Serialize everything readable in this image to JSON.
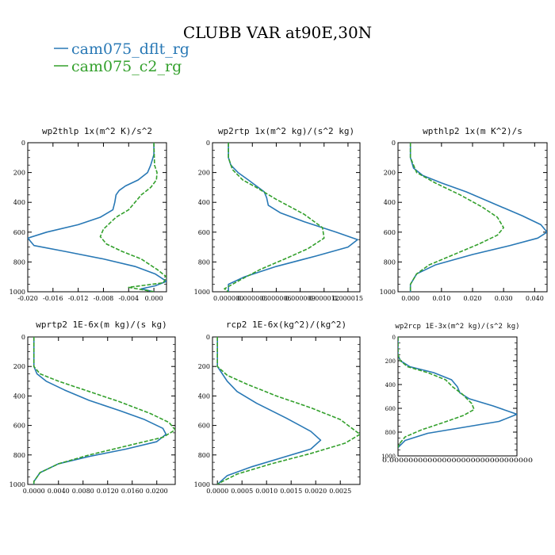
{
  "title": "CLUBB VAR at90E,30N",
  "legend": [
    {
      "label": "cam075_dflt_rg",
      "color": "#2878b5"
    },
    {
      "label": "cam075_c2_rg",
      "color": "#33a02c"
    }
  ],
  "chart_data": [
    {
      "type": "line",
      "title": "wp2thlp  1x(m^2 K)/s^2",
      "xlim": [
        -0.02,
        0.002
      ],
      "ylim": [
        0,
        1000
      ],
      "yticks": [
        0,
        200,
        400,
        600,
        800,
        1000
      ],
      "xticks": [
        {
          "v": -0.02,
          "label": "-0.020"
        },
        {
          "v": -0.016,
          "label": "-0.016"
        },
        {
          "v": -0.012,
          "label": "-0.012"
        },
        {
          "v": -0.008,
          "label": "-0.008"
        },
        {
          "v": -0.004,
          "label": "-0.004"
        },
        {
          "v": 0.0,
          "label": "0.000"
        }
      ],
      "series": [
        {
          "name": "cam075_dflt_rg",
          "dashed": false,
          "points": [
            [
              0,
              0
            ],
            [
              0,
              80
            ],
            [
              -0.0005,
              150
            ],
            [
              -0.001,
              200
            ],
            [
              -0.0025,
              250
            ],
            [
              -0.0045,
              290
            ],
            [
              -0.0055,
              320
            ],
            [
              -0.006,
              350
            ],
            [
              -0.0062,
              400
            ],
            [
              -0.0065,
              450
            ],
            [
              -0.0085,
              500
            ],
            [
              -0.012,
              550
            ],
            [
              -0.017,
              600
            ],
            [
              -0.02,
              640
            ],
            [
              -0.019,
              690
            ],
            [
              -0.014,
              730
            ],
            [
              -0.008,
              780
            ],
            [
              -0.003,
              830
            ],
            [
              0.0002,
              880
            ],
            [
              0.002,
              930
            ],
            [
              0.0002,
              960
            ],
            [
              -0.002,
              980
            ],
            [
              0,
              1000
            ]
          ]
        },
        {
          "name": "cam075_c2_rg",
          "dashed": true,
          "points": [
            [
              0,
              0
            ],
            [
              0.0001,
              150
            ],
            [
              0.0005,
              200
            ],
            [
              0.0004,
              250
            ],
            [
              -0.0005,
              300
            ],
            [
              -0.002,
              350
            ],
            [
              -0.004,
              450
            ],
            [
              -0.006,
              500
            ],
            [
              -0.008,
              580
            ],
            [
              -0.0085,
              630
            ],
            [
              -0.0075,
              680
            ],
            [
              -0.005,
              730
            ],
            [
              -0.002,
              780
            ],
            [
              0.0005,
              850
            ],
            [
              0.002,
              900
            ],
            [
              0.0015,
              940
            ],
            [
              -0.004,
              970
            ],
            [
              0,
              1000
            ]
          ]
        }
      ]
    },
    {
      "type": "line",
      "title": "wp2rtp  1x(m^2 kg)/(s^2 kg)",
      "xlim": [
        -2e-06,
        1.65e-05
      ],
      "ylim": [
        0,
        1000
      ],
      "yticks": [
        0,
        200,
        400,
        600,
        800,
        1000
      ],
      "xticks": [
        {
          "v": 0,
          "label": "0.000000"
        },
        {
          "v": 3e-06,
          "label": "0.000003"
        },
        {
          "v": 6e-06,
          "label": "0.000006"
        },
        {
          "v": 9e-06,
          "label": "0.000009"
        },
        {
          "v": 1.2e-05,
          "label": "0.000012"
        },
        {
          "v": 1.5e-05,
          "label": "0.000015"
        }
      ],
      "series": [
        {
          "name": "cam075_dflt_rg",
          "dashed": false,
          "points": [
            [
              0,
              0
            ],
            [
              0,
              100
            ],
            [
              3e-07,
              150
            ],
            [
              1.2e-06,
              200
            ],
            [
              2.5e-06,
              250
            ],
            [
              3.5e-06,
              290
            ],
            [
              4.5e-06,
              330
            ],
            [
              4.8e-06,
              370
            ],
            [
              5e-06,
              420
            ],
            [
              6.5e-06,
              470
            ],
            [
              9.5e-06,
              530
            ],
            [
              1.35e-05,
              600
            ],
            [
              1.62e-05,
              650
            ],
            [
              1.5e-05,
              700
            ],
            [
              1.1e-05,
              760
            ],
            [
              6e-06,
              830
            ],
            [
              2e-06,
              900
            ],
            [
              0,
              950
            ],
            [
              0,
              1000
            ]
          ]
        },
        {
          "name": "cam075_c2_rg",
          "dashed": true,
          "points": [
            [
              0,
              0
            ],
            [
              0,
              100
            ],
            [
              5e-07,
              180
            ],
            [
              1.8e-06,
              250
            ],
            [
              3.5e-06,
              300
            ],
            [
              6e-06,
              380
            ],
            [
              9.5e-06,
              480
            ],
            [
              1.18e-05,
              570
            ],
            [
              1.2e-05,
              640
            ],
            [
              1e-05,
              710
            ],
            [
              7.5e-06,
              770
            ],
            [
              4e-06,
              850
            ],
            [
              1.5e-06,
              920
            ],
            [
              -5e-07,
              980
            ],
            [
              0,
              1000
            ]
          ]
        }
      ]
    },
    {
      "type": "line",
      "title": "wpthlp2  1x(m K^2)/s",
      "xlim": [
        -0.004,
        0.044
      ],
      "ylim": [
        0,
        1000
      ],
      "yticks": [
        0,
        200,
        400,
        600,
        800,
        1000
      ],
      "xticks": [
        {
          "v": 0,
          "label": "0.000"
        },
        {
          "v": 0.01,
          "label": "0.010"
        },
        {
          "v": 0.02,
          "label": "0.020"
        },
        {
          "v": 0.03,
          "label": "0.030"
        },
        {
          "v": 0.04,
          "label": "0.040"
        }
      ],
      "series": [
        {
          "name": "cam075_dflt_rg",
          "dashed": false,
          "points": [
            [
              0,
              0
            ],
            [
              0,
              100
            ],
            [
              0.001,
              170
            ],
            [
              0.004,
              220
            ],
            [
              0.01,
              270
            ],
            [
              0.018,
              330
            ],
            [
              0.027,
              410
            ],
            [
              0.036,
              490
            ],
            [
              0.042,
              550
            ],
            [
              0.044,
              600
            ],
            [
              0.041,
              640
            ],
            [
              0.032,
              690
            ],
            [
              0.02,
              750
            ],
            [
              0.008,
              820
            ],
            [
              0.002,
              880
            ],
            [
              0,
              950
            ],
            [
              0,
              1000
            ]
          ]
        },
        {
          "name": "cam075_c2_rg",
          "dashed": true,
          "points": [
            [
              0,
              0
            ],
            [
              0,
              100
            ],
            [
              0.002,
              200
            ],
            [
              0.008,
              270
            ],
            [
              0.016,
              350
            ],
            [
              0.023,
              430
            ],
            [
              0.028,
              500
            ],
            [
              0.03,
              570
            ],
            [
              0.028,
              620
            ],
            [
              0.022,
              680
            ],
            [
              0.014,
              750
            ],
            [
              0.006,
              820
            ],
            [
              0.002,
              880
            ],
            [
              0,
              950
            ],
            [
              0,
              1000
            ]
          ]
        }
      ]
    },
    {
      "type": "line",
      "title": "wprtp2  1E-6x(m kg)/(s kg)",
      "xlim": [
        -0.001,
        0.023
      ],
      "ylim": [
        0,
        1000
      ],
      "yticks": [
        0,
        200,
        400,
        600,
        800,
        1000
      ],
      "xticks": [
        {
          "v": 0,
          "label": "0.0000"
        },
        {
          "v": 0.004,
          "label": "0.0040"
        },
        {
          "v": 0.008,
          "label": "0.0080"
        },
        {
          "v": 0.012,
          "label": "0.0120"
        },
        {
          "v": 0.016,
          "label": "0.0160"
        },
        {
          "v": 0.02,
          "label": "0.0200"
        }
      ],
      "series": [
        {
          "name": "cam075_dflt_rg",
          "dashed": false,
          "points": [
            [
              0,
              0
            ],
            [
              0,
              200
            ],
            [
              0.0005,
              250
            ],
            [
              0.002,
              300
            ],
            [
              0.005,
              360
            ],
            [
              0.009,
              430
            ],
            [
              0.014,
              500
            ],
            [
              0.018,
              560
            ],
            [
              0.021,
              620
            ],
            [
              0.0215,
              660
            ],
            [
              0.02,
              710
            ],
            [
              0.015,
              760
            ],
            [
              0.009,
              810
            ],
            [
              0.004,
              860
            ],
            [
              0.001,
              920
            ],
            [
              0,
              980
            ],
            [
              0,
              1000
            ]
          ]
        },
        {
          "name": "cam075_c2_rg",
          "dashed": true,
          "points": [
            [
              0,
              0
            ],
            [
              0,
              200
            ],
            [
              0.001,
              250
            ],
            [
              0.004,
              300
            ],
            [
              0.009,
              370
            ],
            [
              0.014,
              440
            ],
            [
              0.019,
              520
            ],
            [
              0.022,
              580
            ],
            [
              0.023,
              630
            ],
            [
              0.021,
              680
            ],
            [
              0.015,
              740
            ],
            [
              0.009,
              800
            ],
            [
              0.004,
              860
            ],
            [
              0.001,
              920
            ],
            [
              0,
              980
            ],
            [
              0,
              1000
            ]
          ]
        }
      ]
    },
    {
      "type": "line",
      "title": "rcp2  1E-6x(kg^2)/(kg^2)",
      "xlim": [
        -0.0001,
        0.0029
      ],
      "ylim": [
        0,
        1000
      ],
      "yticks": [
        0,
        200,
        400,
        600,
        800,
        1000
      ],
      "xticks": [
        {
          "v": 0,
          "label": "0.0000"
        },
        {
          "v": 0.0005,
          "label": "0.0005"
        },
        {
          "v": 0.001,
          "label": "0.0010"
        },
        {
          "v": 0.0015,
          "label": "0.0015"
        },
        {
          "v": 0.002,
          "label": "0.0020"
        },
        {
          "v": 0.0025,
          "label": "0.0025"
        }
      ],
      "series": [
        {
          "name": "cam075_dflt_rg",
          "dashed": false,
          "points": [
            [
              0,
              0
            ],
            [
              0,
              200
            ],
            [
              0.0001,
              250
            ],
            [
              0.0002,
              300
            ],
            [
              0.0004,
              370
            ],
            [
              0.0008,
              450
            ],
            [
              0.0014,
              550
            ],
            [
              0.0019,
              640
            ],
            [
              0.0021,
              700
            ],
            [
              0.0019,
              760
            ],
            [
              0.0013,
              820
            ],
            [
              0.0007,
              880
            ],
            [
              0.0002,
              940
            ],
            [
              0,
              1000
            ]
          ]
        },
        {
          "name": "cam075_c2_rg",
          "dashed": true,
          "points": [
            [
              0,
              0
            ],
            [
              0,
              200
            ],
            [
              0.0002,
              260
            ],
            [
              0.0006,
              320
            ],
            [
              0.0012,
              400
            ],
            [
              0.0019,
              480
            ],
            [
              0.0025,
              560
            ],
            [
              0.0029,
              660
            ],
            [
              0.0026,
              720
            ],
            [
              0.0019,
              790
            ],
            [
              0.0011,
              860
            ],
            [
              0.0004,
              930
            ],
            [
              0.0001,
              980
            ],
            [
              0,
              1000
            ]
          ]
        }
      ]
    },
    {
      "type": "line",
      "title": "wp2rcp  1E-3x(m^2 kg)/(s^2 kg)",
      "xlim": [
        0,
        1
      ],
      "ylim": [
        0,
        1000
      ],
      "yticks": [
        0,
        200,
        400,
        600,
        800,
        1000
      ],
      "xtick_label_text": "0.000000000000000000000000000000",
      "xticks": [],
      "series": [
        {
          "name": "cam075_dflt_rg",
          "dashed": false,
          "points": [
            [
              0,
              0
            ],
            [
              0,
              150
            ],
            [
              0.02,
              200
            ],
            [
              0.1,
              250
            ],
            [
              0.3,
              300
            ],
            [
              0.45,
              360
            ],
            [
              0.5,
              420
            ],
            [
              0.52,
              470
            ],
            [
              0.6,
              520
            ],
            [
              0.8,
              580
            ],
            [
              1.0,
              650
            ],
            [
              0.85,
              710
            ],
            [
              0.55,
              760
            ],
            [
              0.25,
              810
            ],
            [
              0.06,
              870
            ],
            [
              0,
              930
            ]
          ]
        },
        {
          "name": "cam075_c2_rg",
          "dashed": true,
          "points": [
            [
              0,
              0
            ],
            [
              0,
              150
            ],
            [
              0.02,
              200
            ],
            [
              0.08,
              250
            ],
            [
              0.25,
              300
            ],
            [
              0.4,
              360
            ],
            [
              0.46,
              420
            ],
            [
              0.54,
              480
            ],
            [
              0.62,
              560
            ],
            [
              0.64,
              610
            ],
            [
              0.55,
              660
            ],
            [
              0.38,
              720
            ],
            [
              0.2,
              780
            ],
            [
              0.06,
              840
            ],
            [
              0.01,
              900
            ],
            [
              0,
              930
            ]
          ]
        }
      ]
    }
  ]
}
